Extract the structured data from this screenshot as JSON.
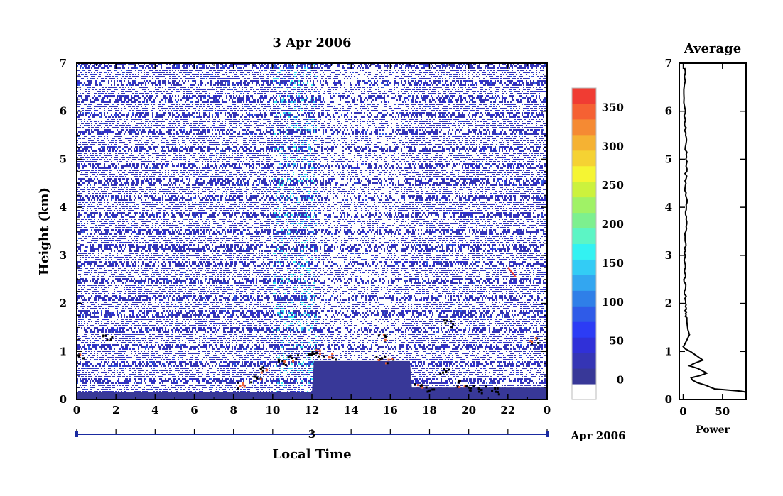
{
  "chart_data": [
    {
      "type": "heatmap",
      "title": "3 Apr 2006",
      "xlabel": "Local Time",
      "ylabel": "Height (km)",
      "xlim": [
        0,
        24
      ],
      "ylim": [
        0,
        7
      ],
      "x_ticks": [
        "0",
        "2",
        "4",
        "6",
        "8",
        "10",
        "12",
        "14",
        "16",
        "18",
        "20",
        "22",
        "0"
      ],
      "y_ticks": [
        "0",
        "1",
        "2",
        "3",
        "4",
        "5",
        "6",
        "7"
      ],
      "date_day": "3",
      "date_month": "Apr 2006",
      "colorbar": {
        "ticks": [
          "0",
          "50",
          "100",
          "150",
          "200",
          "250",
          "300",
          "350"
        ],
        "tick_values": [
          0,
          50,
          100,
          150,
          200,
          250,
          300,
          350
        ],
        "range": [
          -25,
          375
        ],
        "colors": [
          "#ffffff",
          "#383898",
          "#3535b5",
          "#3030d8",
          "#2c3cf5",
          "#2f5be8",
          "#2f7fe8",
          "#33a6f0",
          "#33ccf5",
          "#33f2f2",
          "#5cf5c5",
          "#7df08f",
          "#a0f266",
          "#ccf23d",
          "#f5f533",
          "#f5d233",
          "#f5b233",
          "#f58a33",
          "#f56133",
          "#f03c33"
        ]
      },
      "features": {
        "surface_layer_top_km": {
          "x": [
            0,
            12,
            12.1,
            17,
            17.1,
            24
          ],
          "y": [
            0.15,
            0.15,
            0.8,
            0.8,
            0.25,
            0.25
          ]
        },
        "strong_echo_band_x": [
          10,
          12.2
        ],
        "cloud_layer_points": [
          {
            "x": 8.4,
            "y": 0.32
          },
          {
            "x": 9.1,
            "y": 0.45
          },
          {
            "x": 9.6,
            "y": 0.62
          },
          {
            "x": 10.4,
            "y": 0.78
          },
          {
            "x": 11.0,
            "y": 0.88
          },
          {
            "x": 12.3,
            "y": 0.98
          },
          {
            "x": 13.0,
            "y": 0.92
          },
          {
            "x": 15.4,
            "y": 0.9
          },
          {
            "x": 15.9,
            "y": 0.85
          },
          {
            "x": 17.4,
            "y": 0.3
          },
          {
            "x": 18.0,
            "y": 0.25
          },
          {
            "x": 18.7,
            "y": 0.6
          },
          {
            "x": 19.5,
            "y": 0.35
          },
          {
            "x": 20.0,
            "y": 0.28
          },
          {
            "x": 20.6,
            "y": 0.22
          },
          {
            "x": 21.3,
            "y": 0.18
          },
          {
            "x": 23.3,
            "y": 1.25
          },
          {
            "x": 1.5,
            "y": 1.3
          },
          {
            "x": 0.2,
            "y": 0.95
          },
          {
            "x": 12.0,
            "y": 1.0
          },
          {
            "x": 18.9,
            "y": 1.6
          },
          {
            "x": 15.6,
            "y": 1.3
          }
        ]
      }
    },
    {
      "type": "line",
      "title": "Average",
      "xlabel": "Power",
      "ylabel": "",
      "xlim": [
        -5,
        80
      ],
      "ylim": [
        0,
        7
      ],
      "x_ticks": [
        "0",
        "50"
      ],
      "y_ticks": [
        "0",
        "1",
        "2",
        "3",
        "4",
        "5",
        "6",
        "7"
      ],
      "series": [
        {
          "x": [
            80,
            75,
            55,
            40,
            28,
            18,
            12,
            10,
            22,
            30,
            18,
            8,
            14,
            25,
            18,
            9,
            3,
            0,
            2,
            5,
            8,
            6,
            4,
            3,
            2,
            2,
            3,
            4,
            3,
            4,
            3,
            2,
            2
          ],
          "y": [
            0.15,
            0.17,
            0.2,
            0.22,
            0.3,
            0.35,
            0.4,
            0.45,
            0.5,
            0.55,
            0.65,
            0.7,
            0.75,
            0.82,
            0.9,
            1.0,
            1.05,
            1.1,
            1.15,
            1.25,
            1.35,
            1.45,
            1.7,
            2.0,
            2.5,
            3.0,
            3.5,
            4.0,
            4.5,
            5.0,
            5.5,
            6.0,
            6.9
          ]
        }
      ]
    }
  ]
}
